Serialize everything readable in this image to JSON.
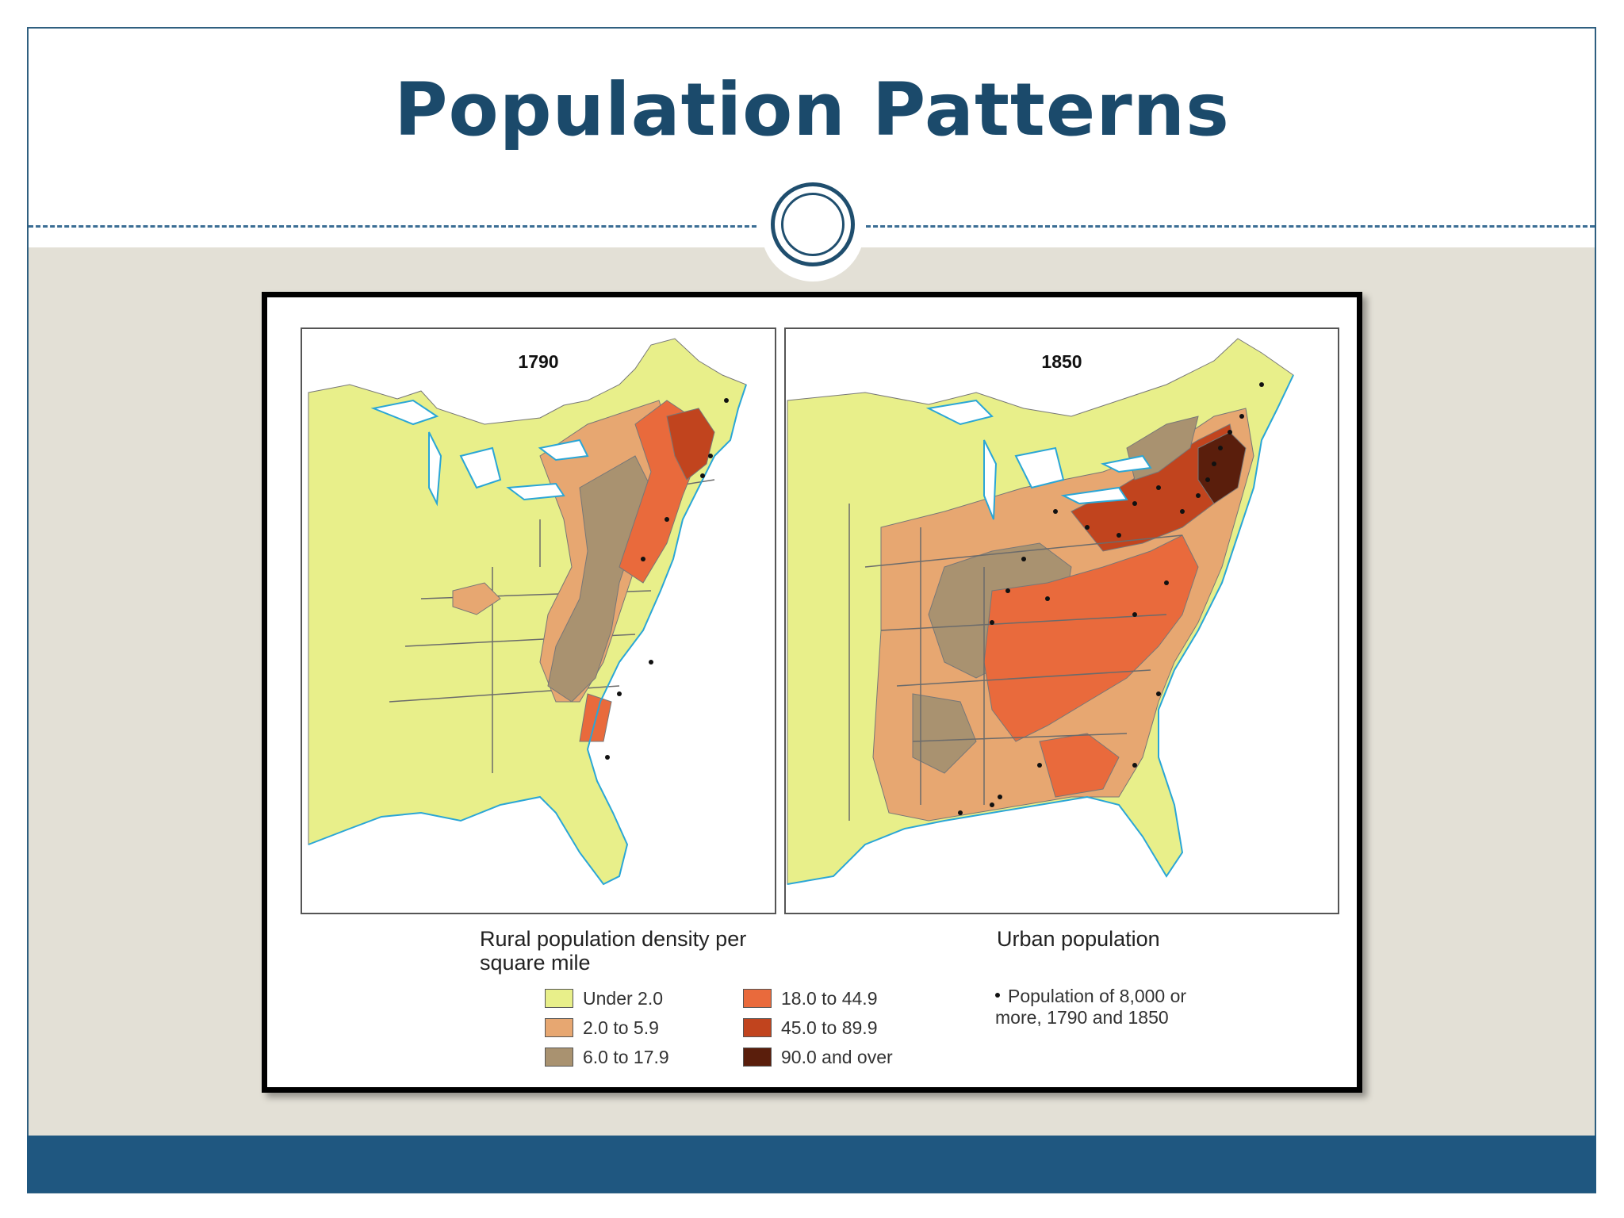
{
  "slide": {
    "title": "Population Patterns"
  },
  "maps": [
    {
      "year": "1790"
    },
    {
      "year": "1850"
    }
  ],
  "legend": {
    "rural_heading": "Rural population density per square mile",
    "rural_classes": [
      {
        "label": "Under 2.0",
        "color": "#e8ef8a"
      },
      {
        "label": "2.0 to 5.9",
        "color": "#e7a771"
      },
      {
        "label": "6.0 to 17.9",
        "color": "#a99270"
      },
      {
        "label": "18.0 to 44.9",
        "color": "#e96a3c"
      },
      {
        "label": "45.0 to 89.9",
        "color": "#c1441e"
      },
      {
        "label": "90.0 and over",
        "color": "#5a1e0c"
      }
    ],
    "urban_heading": "Urban population",
    "urban_note": "Population of 8,000 or more, 1790 and 1850"
  },
  "colors": {
    "title": "#1b4a6b",
    "accent_band": "#1f5780",
    "content_background": "#e3e0d6",
    "water": "#2aa6d6"
  }
}
